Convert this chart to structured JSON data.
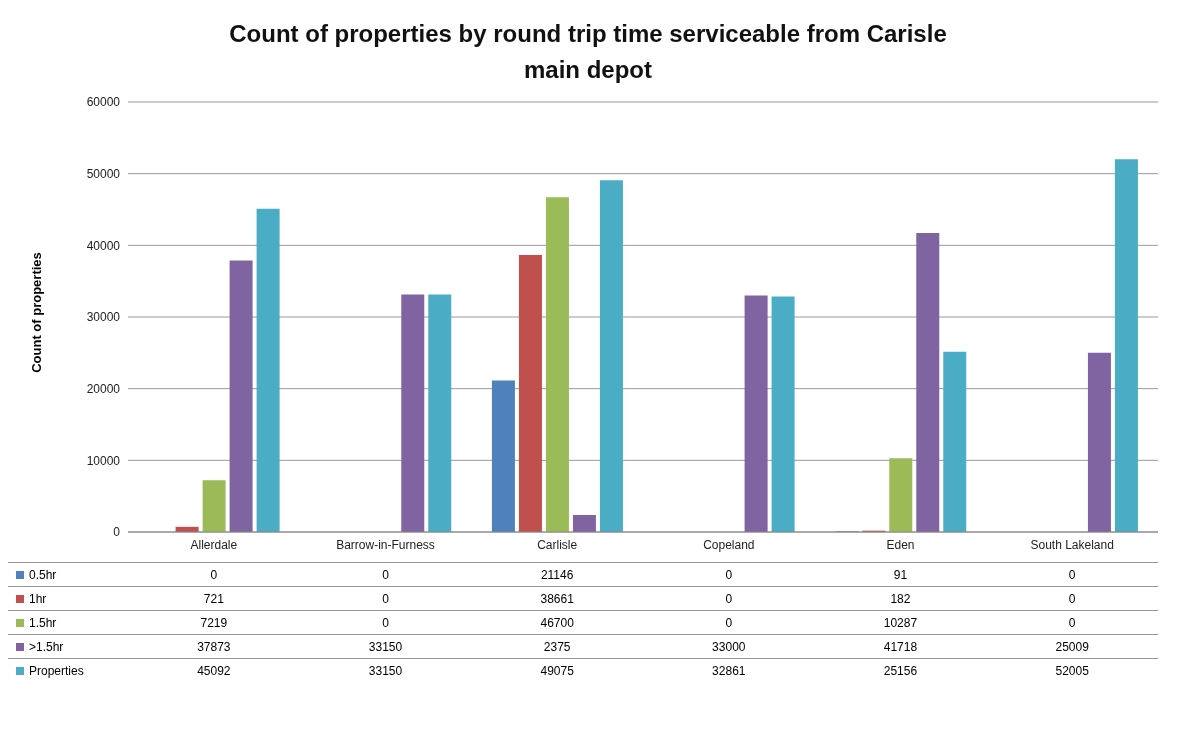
{
  "chart_data": {
    "type": "bar",
    "title": "Count of properties by round trip time serviceable from Carisle main depot",
    "ylabel": "Count of properties",
    "categories": [
      "Allerdale",
      "Barrow-in-Furness",
      "Carlisle",
      "Copeland",
      "Eden",
      "South Lakeland"
    ],
    "series": [
      {
        "name": "0.5hr",
        "color": "#4f81bd",
        "values": [
          0,
          0,
          21146,
          0,
          91,
          0
        ]
      },
      {
        "name": "1hr",
        "color": "#c0504d",
        "values": [
          721,
          0,
          38661,
          0,
          182,
          0
        ]
      },
      {
        "name": "1.5hr",
        "color": "#9bbb59",
        "values": [
          7219,
          0,
          46700,
          0,
          10287,
          0
        ]
      },
      {
        "name": ">1.5hr",
        "color": "#8064a2",
        "values": [
          37873,
          33150,
          2375,
          33000,
          41718,
          25009
        ]
      },
      {
        "name": "Properties",
        "color": "#4bacc6",
        "values": [
          45092,
          33150,
          49075,
          32861,
          25156,
          52005
        ]
      }
    ],
    "ylim": [
      0,
      60000
    ],
    "yticks": [
      0,
      10000,
      20000,
      30000,
      40000,
      50000,
      60000
    ],
    "grid": "y",
    "legend": "bottom",
    "data_labels": true
  }
}
